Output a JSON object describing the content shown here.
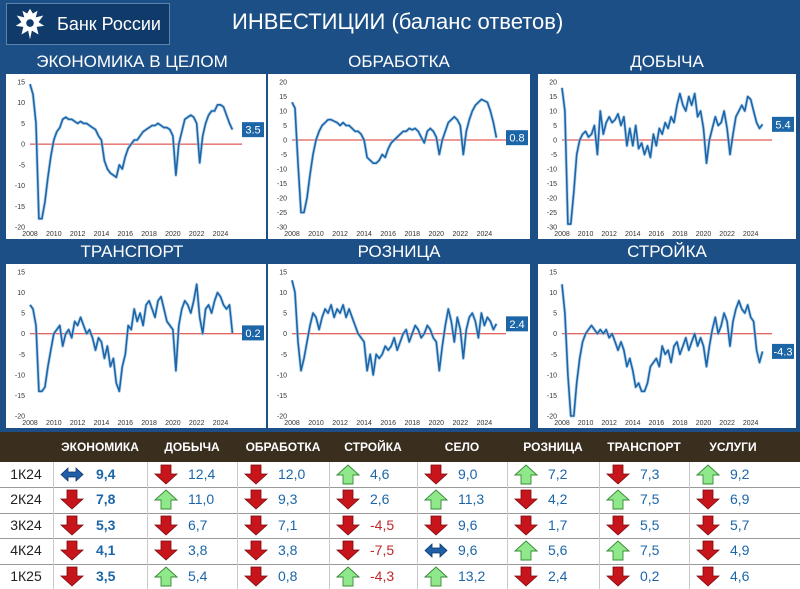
{
  "header": {
    "brand": "Банк России",
    "title": "ИНВЕСТИЦИИ (баланс ответов)"
  },
  "colors": {
    "line": "#1c66a8",
    "zero": "#d9302a",
    "up": "#8fe88a",
    "down": "#c8151b",
    "neutral": "#1f5fa8",
    "neg_text": "#c0272d"
  },
  "chart_data": [
    {
      "id": "economy",
      "type": "line",
      "title": "ЭКОНОМИКА В ЦЕЛОМ",
      "ylim": [
        -20,
        15
      ],
      "yticks": [
        -20,
        -15,
        -10,
        -5,
        0,
        5,
        10,
        15
      ],
      "xticks": [
        "2008",
        "2010",
        "2012",
        "2014",
        "2016",
        "2018",
        "2020",
        "2022",
        "2024"
      ],
      "last_value": "3.5",
      "x": [
        2008.0,
        2008.25,
        2008.5,
        2008.75,
        2009.0,
        2009.25,
        2009.5,
        2009.75,
        2010.0,
        2010.25,
        2010.5,
        2010.75,
        2011.0,
        2011.25,
        2011.5,
        2011.75,
        2012.0,
        2012.25,
        2012.5,
        2012.75,
        2013.0,
        2013.25,
        2013.5,
        2013.75,
        2014.0,
        2014.25,
        2014.5,
        2014.75,
        2015.0,
        2015.25,
        2015.5,
        2015.75,
        2016.0,
        2016.25,
        2016.5,
        2016.75,
        2017.0,
        2017.25,
        2017.5,
        2017.75,
        2018.0,
        2018.25,
        2018.5,
        2018.75,
        2019.0,
        2019.25,
        2019.5,
        2019.75,
        2020.0,
        2020.25,
        2020.5,
        2020.75,
        2021.0,
        2021.25,
        2021.5,
        2021.75,
        2022.0,
        2022.25,
        2022.5,
        2022.75,
        2023.0,
        2023.25,
        2023.5,
        2023.75,
        2024.0,
        2024.25,
        2024.5,
        2024.75,
        2025.0
      ],
      "y": [
        14.5,
        12,
        5,
        -18,
        -18,
        -14,
        -8,
        -3,
        1,
        3,
        4,
        6,
        6.5,
        6,
        6,
        5.5,
        5,
        5.5,
        5,
        5,
        4.5,
        4,
        3.5,
        2,
        1,
        -4,
        -6,
        -7,
        -7.5,
        -8,
        -5,
        -6,
        -3,
        -1,
        0,
        1,
        1,
        2,
        3,
        3.5,
        4,
        4.5,
        4.5,
        5,
        4.5,
        4,
        4,
        3.5,
        2,
        -7.5,
        0,
        3,
        6,
        6.5,
        7,
        6.5,
        5,
        -4.5,
        2,
        5,
        7,
        8,
        8,
        9.5,
        9.5,
        9,
        7,
        5,
        3.5
      ]
    },
    {
      "id": "manufacturing",
      "type": "line",
      "title": "ОБРАБОТКА",
      "ylim": [
        -30,
        20
      ],
      "yticks": [
        -30,
        -25,
        -20,
        -15,
        -10,
        -5,
        0,
        5,
        10,
        15,
        20
      ],
      "xticks": [
        "2008",
        "2010",
        "2012",
        "2014",
        "2016",
        "2018",
        "2020",
        "2022",
        "2024"
      ],
      "last_value": "0.8",
      "x": [
        2008.0,
        2008.25,
        2008.5,
        2008.75,
        2009.0,
        2009.25,
        2009.5,
        2009.75,
        2010.0,
        2010.25,
        2010.5,
        2010.75,
        2011.0,
        2011.25,
        2011.5,
        2011.75,
        2012.0,
        2012.25,
        2012.5,
        2012.75,
        2013.0,
        2013.25,
        2013.5,
        2013.75,
        2014.0,
        2014.25,
        2014.5,
        2014.75,
        2015.0,
        2015.25,
        2015.5,
        2015.75,
        2016.0,
        2016.25,
        2016.5,
        2016.75,
        2017.0,
        2017.25,
        2017.5,
        2017.75,
        2018.0,
        2018.25,
        2018.5,
        2018.75,
        2019.0,
        2019.25,
        2019.5,
        2019.75,
        2020.0,
        2020.25,
        2020.5,
        2020.75,
        2021.0,
        2021.25,
        2021.5,
        2021.75,
        2022.0,
        2022.25,
        2022.5,
        2022.75,
        2023.0,
        2023.25,
        2023.5,
        2023.75,
        2024.0,
        2024.25,
        2024.5,
        2024.75,
        2025.0
      ],
      "y": [
        13,
        11,
        -8,
        -25,
        -25,
        -20,
        -12,
        -5,
        0,
        3,
        5,
        6,
        7,
        7,
        6.5,
        6,
        5,
        6,
        5,
        5,
        4,
        3,
        3,
        2,
        0,
        -6,
        -7,
        -8,
        -8,
        -7,
        -5,
        -6,
        -3,
        -1,
        0,
        1,
        2,
        3,
        3,
        4,
        3.5,
        4,
        3,
        1,
        -1,
        3,
        4,
        3,
        1,
        -5,
        0,
        3,
        6,
        7,
        8,
        7,
        5,
        -5,
        3,
        7,
        10,
        12,
        13,
        14,
        13.5,
        13,
        10,
        6,
        0.8
      ]
    },
    {
      "id": "mining",
      "type": "line",
      "title": "ДОБЫЧА",
      "ylim": [
        -30,
        20
      ],
      "yticks": [
        -30,
        -25,
        -20,
        -15,
        -10,
        -5,
        0,
        5,
        10,
        15,
        20
      ],
      "xticks": [
        "2008",
        "2010",
        "2012",
        "2014",
        "2016",
        "2018",
        "2020",
        "2022",
        "2024"
      ],
      "last_value": "5.4",
      "x": [
        2008.0,
        2008.25,
        2008.5,
        2008.75,
        2009.0,
        2009.25,
        2009.5,
        2009.75,
        2010.0,
        2010.25,
        2010.5,
        2010.75,
        2011.0,
        2011.25,
        2011.5,
        2011.75,
        2012.0,
        2012.25,
        2012.5,
        2012.75,
        2013.0,
        2013.25,
        2013.5,
        2013.75,
        2014.0,
        2014.25,
        2014.5,
        2014.75,
        2015.0,
        2015.25,
        2015.5,
        2015.75,
        2016.0,
        2016.25,
        2016.5,
        2016.75,
        2017.0,
        2017.25,
        2017.5,
        2017.75,
        2018.0,
        2018.25,
        2018.5,
        2018.75,
        2019.0,
        2019.25,
        2019.5,
        2019.75,
        2020.0,
        2020.25,
        2020.5,
        2020.75,
        2021.0,
        2021.25,
        2021.5,
        2021.75,
        2022.0,
        2022.25,
        2022.5,
        2022.75,
        2023.0,
        2023.25,
        2023.5,
        2023.75,
        2024.0,
        2024.25,
        2024.5,
        2024.75,
        2025.0
      ],
      "y": [
        18,
        10,
        -29,
        -29,
        -18,
        -5,
        0,
        2,
        3,
        1,
        2,
        5,
        -5,
        10,
        2,
        6,
        8,
        6,
        7,
        9,
        5,
        8,
        -2,
        4,
        -2,
        5,
        -3,
        -1,
        -5,
        -2,
        -6,
        2,
        -2,
        4,
        2,
        6,
        4,
        8,
        6,
        12,
        16,
        12,
        10,
        15,
        12,
        16,
        8,
        10,
        4,
        -8,
        0,
        4,
        8,
        5,
        6,
        10,
        4,
        -5,
        2,
        8,
        10,
        12,
        10,
        15,
        14,
        10,
        6,
        4,
        5.4
      ]
    },
    {
      "id": "transport",
      "type": "line",
      "title": "ТРАНСПОРТ",
      "ylim": [
        -20,
        15
      ],
      "yticks": [
        -20,
        -15,
        -10,
        -5,
        0,
        5,
        10,
        15
      ],
      "xticks": [
        "2008",
        "2010",
        "2012",
        "2014",
        "2016",
        "2018",
        "2020",
        "2022",
        "2024"
      ],
      "last_value": "0.2",
      "x": [
        2008.0,
        2008.25,
        2008.5,
        2008.75,
        2009.0,
        2009.25,
        2009.5,
        2009.75,
        2010.0,
        2010.25,
        2010.5,
        2010.75,
        2011.0,
        2011.25,
        2011.5,
        2011.75,
        2012.0,
        2012.25,
        2012.5,
        2012.75,
        2013.0,
        2013.25,
        2013.5,
        2013.75,
        2014.0,
        2014.25,
        2014.5,
        2014.75,
        2015.0,
        2015.25,
        2015.5,
        2015.75,
        2016.0,
        2016.25,
        2016.5,
        2016.75,
        2017.0,
        2017.25,
        2017.5,
        2017.75,
        2018.0,
        2018.25,
        2018.5,
        2018.75,
        2019.0,
        2019.25,
        2019.5,
        2019.75,
        2020.0,
        2020.25,
        2020.5,
        2020.75,
        2021.0,
        2021.25,
        2021.5,
        2021.75,
        2022.0,
        2022.25,
        2022.5,
        2022.75,
        2023.0,
        2023.25,
        2023.5,
        2023.75,
        2024.0,
        2024.25,
        2024.5,
        2024.75,
        2025.0
      ],
      "y": [
        7,
        6,
        2,
        -14,
        -14,
        -13,
        -8,
        -4,
        0,
        1,
        2,
        -3,
        0,
        1,
        -1,
        3,
        2,
        4,
        2,
        0,
        1,
        -1,
        -4,
        -1,
        -2,
        -6,
        -3,
        -8,
        -6,
        -12,
        -14,
        -8,
        -5,
        2,
        1,
        6,
        3,
        5,
        2,
        7,
        8,
        6,
        4,
        8,
        9,
        6,
        3,
        2,
        1,
        -9,
        2,
        6,
        8,
        7,
        5,
        8,
        12,
        4,
        0,
        6,
        7,
        5,
        8,
        10,
        9,
        7,
        6,
        7,
        0.2
      ]
    },
    {
      "id": "retail",
      "type": "line",
      "title": "РОЗНИЦА",
      "ylim": [
        -20,
        15
      ],
      "yticks": [
        -20,
        -15,
        -10,
        -5,
        0,
        5,
        10,
        15
      ],
      "xticks": [
        "2008",
        "2010",
        "2012",
        "2014",
        "2016",
        "2018",
        "2020",
        "2022",
        "2024"
      ],
      "last_value": "2.4",
      "x": [
        2008.0,
        2008.25,
        2008.5,
        2008.75,
        2009.0,
        2009.25,
        2009.5,
        2009.75,
        2010.0,
        2010.25,
        2010.5,
        2010.75,
        2011.0,
        2011.25,
        2011.5,
        2011.75,
        2012.0,
        2012.25,
        2012.5,
        2012.75,
        2013.0,
        2013.25,
        2013.5,
        2013.75,
        2014.0,
        2014.25,
        2014.5,
        2014.75,
        2015.0,
        2015.25,
        2015.5,
        2015.75,
        2016.0,
        2016.25,
        2016.5,
        2016.75,
        2017.0,
        2017.25,
        2017.5,
        2017.75,
        2018.0,
        2018.25,
        2018.5,
        2018.75,
        2019.0,
        2019.25,
        2019.5,
        2019.75,
        2020.0,
        2020.25,
        2020.5,
        2020.75,
        2021.0,
        2021.25,
        2021.5,
        2021.75,
        2022.0,
        2022.25,
        2022.5,
        2022.75,
        2023.0,
        2023.25,
        2023.5,
        2023.75,
        2024.0,
        2024.25,
        2024.5,
        2024.75,
        2025.0
      ],
      "y": [
        13,
        10,
        -2,
        -9,
        -6,
        -2,
        2,
        5,
        4,
        1,
        4,
        6,
        5,
        7,
        4,
        6,
        5,
        7,
        4,
        6,
        4,
        2,
        0,
        -1,
        -2,
        -9,
        -5,
        -10,
        -5,
        -6,
        -5,
        -3,
        -4,
        -3,
        -1,
        -4,
        -2,
        0,
        1,
        -2,
        0,
        2,
        1,
        -1,
        0,
        2,
        1,
        -1,
        -2,
        -9,
        -3,
        2,
        6,
        3,
        -2,
        4,
        1,
        -6,
        1,
        4,
        5,
        3,
        -1,
        5,
        2,
        4,
        3,
        1,
        2.4
      ]
    },
    {
      "id": "construction",
      "type": "line",
      "title": "СТРОЙКА",
      "ylim": [
        -20,
        15
      ],
      "yticks": [
        -20,
        -15,
        -10,
        -5,
        0,
        5,
        10,
        15
      ],
      "xticks": [
        "2008",
        "2010",
        "2012",
        "2014",
        "2016",
        "2018",
        "2020",
        "2022",
        "2024"
      ],
      "last_value": "-4.3",
      "x": [
        2008.0,
        2008.25,
        2008.5,
        2008.75,
        2009.0,
        2009.25,
        2009.5,
        2009.75,
        2010.0,
        2010.25,
        2010.5,
        2010.75,
        2011.0,
        2011.25,
        2011.5,
        2011.75,
        2012.0,
        2012.25,
        2012.5,
        2012.75,
        2013.0,
        2013.25,
        2013.5,
        2013.75,
        2014.0,
        2014.25,
        2014.5,
        2014.75,
        2015.0,
        2015.25,
        2015.5,
        2015.75,
        2016.0,
        2016.25,
        2016.5,
        2016.75,
        2017.0,
        2017.25,
        2017.5,
        2017.75,
        2018.0,
        2018.25,
        2018.5,
        2018.75,
        2019.0,
        2019.25,
        2019.5,
        2019.75,
        2020.0,
        2020.25,
        2020.5,
        2020.75,
        2021.0,
        2021.25,
        2021.5,
        2021.75,
        2022.0,
        2022.25,
        2022.5,
        2022.75,
        2023.0,
        2023.25,
        2023.5,
        2023.75,
        2024.0,
        2024.25,
        2024.5,
        2024.75,
        2025.0
      ],
      "y": [
        12,
        5,
        -10,
        -20,
        -20,
        -12,
        -6,
        -2,
        0,
        1,
        2,
        1,
        0,
        1,
        0,
        1,
        -1,
        0,
        -2,
        -4,
        -2,
        -4,
        -8,
        -6,
        -9,
        -13,
        -12,
        -14,
        -14,
        -12,
        -8,
        -7,
        -6,
        -8,
        -3,
        -5,
        -4,
        -7,
        -3,
        -2,
        -5,
        -3,
        -1,
        -4,
        -2,
        0,
        -3,
        -1,
        -3,
        -8,
        -3,
        1,
        4,
        0,
        2,
        5,
        3,
        -3,
        3,
        6,
        8,
        6,
        5,
        7,
        4,
        3,
        -4,
        -7,
        -4.3
      ]
    }
  ],
  "table": {
    "headers": [
      "ЭКОНОМИКА",
      "ДОБЫЧА",
      "ОБРАБОТКА",
      "СТРОЙКА",
      "СЕЛО",
      "РОЗНИЦА",
      "ТРАНСПОРТ",
      "УСЛУГИ"
    ],
    "rows": [
      {
        "label": "1К24",
        "cells": [
          {
            "d": "both",
            "v": "9,4"
          },
          {
            "d": "down",
            "v": "12,4"
          },
          {
            "d": "down",
            "v": "12,0"
          },
          {
            "d": "up",
            "v": "4,6"
          },
          {
            "d": "down",
            "v": "9,0"
          },
          {
            "d": "up",
            "v": "7,2"
          },
          {
            "d": "down",
            "v": "7,3"
          },
          {
            "d": "up",
            "v": "9,2"
          }
        ]
      },
      {
        "label": "2К24",
        "cells": [
          {
            "d": "down",
            "v": "7,8"
          },
          {
            "d": "up",
            "v": "11,0"
          },
          {
            "d": "down",
            "v": "9,3"
          },
          {
            "d": "down",
            "v": "2,6"
          },
          {
            "d": "up",
            "v": "11,3"
          },
          {
            "d": "down",
            "v": "4,2"
          },
          {
            "d": "up",
            "v": "7,5"
          },
          {
            "d": "down",
            "v": "6,9"
          }
        ]
      },
      {
        "label": "3К24",
        "cells": [
          {
            "d": "down",
            "v": "5,3"
          },
          {
            "d": "down",
            "v": "6,7"
          },
          {
            "d": "down",
            "v": "7,1"
          },
          {
            "d": "down",
            "v": "-4,5"
          },
          {
            "d": "down",
            "v": "9,6"
          },
          {
            "d": "down",
            "v": "1,7"
          },
          {
            "d": "down",
            "v": "5,5"
          },
          {
            "d": "down",
            "v": "5,7"
          }
        ]
      },
      {
        "label": "4К24",
        "cells": [
          {
            "d": "down",
            "v": "4,1"
          },
          {
            "d": "down",
            "v": "3,8"
          },
          {
            "d": "down",
            "v": "3,8"
          },
          {
            "d": "down",
            "v": "-7,5"
          },
          {
            "d": "both",
            "v": "9,6"
          },
          {
            "d": "up",
            "v": "5,6"
          },
          {
            "d": "up",
            "v": "7,5"
          },
          {
            "d": "down",
            "v": "4,9"
          }
        ]
      },
      {
        "label": "1К25",
        "cells": [
          {
            "d": "down",
            "v": "3,5"
          },
          {
            "d": "up",
            "v": "5,4"
          },
          {
            "d": "down",
            "v": "0,8"
          },
          {
            "d": "up",
            "v": "-4,3"
          },
          {
            "d": "up",
            "v": "13,2"
          },
          {
            "d": "down",
            "v": "2,4"
          },
          {
            "d": "down",
            "v": "0,2"
          },
          {
            "d": "down",
            "v": "4,6"
          }
        ]
      }
    ]
  }
}
